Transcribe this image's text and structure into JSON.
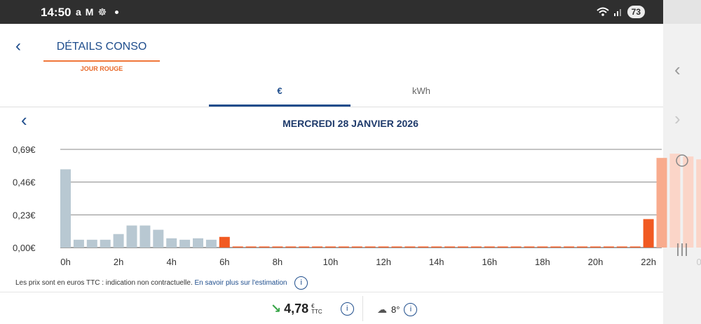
{
  "status_bar": {
    "time": "14:50",
    "notification_icons": [
      "a",
      "M",
      "☸"
    ],
    "battery": "73"
  },
  "header": {
    "title": "DÉTAILS CONSO",
    "subtitle": "JOUR ROUGE"
  },
  "tabs": [
    {
      "label": "€",
      "active": true
    },
    {
      "label": "kWh",
      "active": false
    }
  ],
  "day_nav": {
    "date": "MERCREDI 28 JANVIER 2026"
  },
  "chart_data": {
    "type": "bar",
    "y_ticks": [
      "0,69€",
      "0,46€",
      "0,23€",
      "0,00€"
    ],
    "ylim": [
      0,
      0.69
    ],
    "x_ticks": [
      "0h",
      "2h",
      "4h",
      "6h",
      "8h",
      "10h",
      "12h",
      "14h",
      "16h",
      "18h",
      "20h",
      "22h"
    ],
    "values": [
      0.55,
      0.055,
      0.055,
      0.055,
      0.095,
      0.155,
      0.155,
      0.125,
      0.065,
      0.055,
      0.065,
      0.055,
      0.075,
      0.005,
      0.005,
      0.005,
      0.005,
      0.005,
      0.005,
      0.005,
      0.005,
      0.005,
      0.005,
      0.005,
      0.005,
      0.005,
      0.005,
      0.005,
      0.005,
      0.005,
      0.005,
      0.005,
      0.005,
      0.005,
      0.005,
      0.005,
      0.005,
      0.005,
      0.005,
      0.005,
      0.005,
      0.005,
      0.005,
      0.005,
      0.2,
      0.63
    ],
    "bar_colors": {
      "low": "#b8c8d2",
      "high": "#f15a22",
      "estimate": "#f8ab8d",
      "next_day": "#fbd5c8"
    },
    "next_day_values": [
      0.66,
      0.64,
      0.62
    ],
    "next_day_tick": "0h",
    "grid": true
  },
  "footnote": {
    "text": "Les prix sont en euros TTC : indication non contractuelle.",
    "link": "En savoir plus sur l'estimation"
  },
  "summary": {
    "total_value": "4,78",
    "currency": "€",
    "currency_note": "TTC",
    "trend": "down",
    "temperature": "8°"
  }
}
